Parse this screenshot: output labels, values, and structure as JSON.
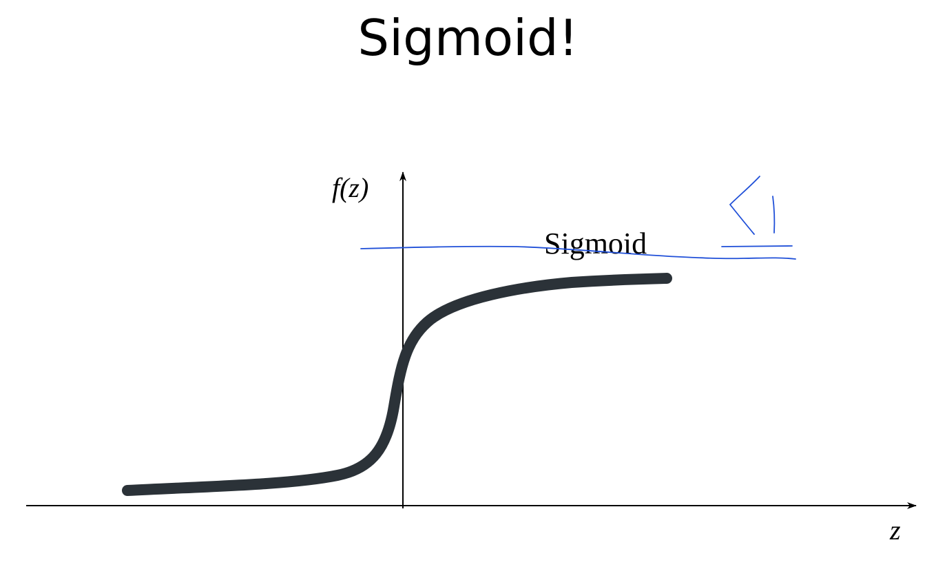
{
  "title": "Sigmoid!",
  "figure": {
    "y_axis_label": "f(z)",
    "x_axis_label": "z",
    "curve_label": "Sigmoid",
    "curve_color": "#2b3238",
    "axis_color": "#000000",
    "annotation": {
      "color": "#1f4fd8",
      "text": "<1"
    }
  }
}
